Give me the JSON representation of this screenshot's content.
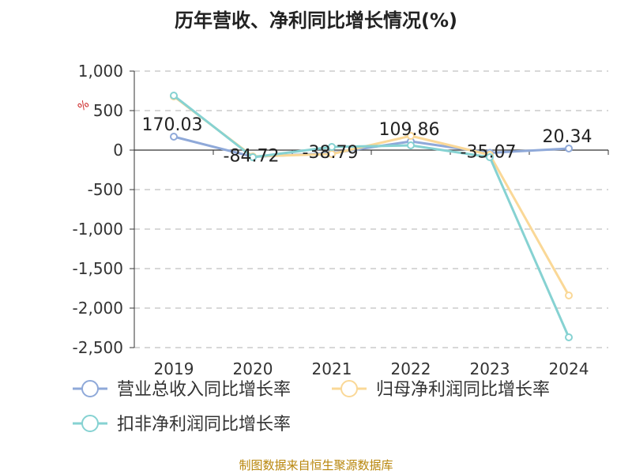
{
  "chart_data": {
    "type": "line",
    "title": "历年营收、净利同比增长情况(%)",
    "ylabel": "%",
    "categories": [
      "2019",
      "2020",
      "2021",
      "2022",
      "2023",
      "2024"
    ],
    "ylim": [
      -2500,
      1000
    ],
    "yticks": [
      1000,
      500,
      0,
      -500,
      -1000,
      -1500,
      -2000,
      -2500
    ],
    "ytick_labels": [
      "1,000",
      "500",
      "0",
      "-500",
      "-1,000",
      "-1,500",
      "-2,000",
      "-2,500"
    ],
    "grid": true,
    "legend_position": "bottom",
    "series": [
      {
        "name": "营业总收入同比增长率",
        "color": "#8fa9d9",
        "values": [
          170.03,
          -84.72,
          -38.79,
          109.86,
          -35.07,
          20.34
        ],
        "labels": [
          "170.03",
          "-84.72",
          "-38.79",
          "109.86",
          "-35.07",
          "20.34"
        ]
      },
      {
        "name": "归母净利润同比增长率",
        "color": "#fad897",
        "values": [
          680,
          -80,
          -50,
          180,
          -60,
          -1840
        ]
      },
      {
        "name": "扣非净利润同比增长率",
        "color": "#86d2d2",
        "values": [
          690,
          -90,
          40,
          60,
          -90,
          -2370
        ]
      }
    ]
  },
  "footer": {
    "source": "制图数据来自恒生聚源数据库"
  }
}
